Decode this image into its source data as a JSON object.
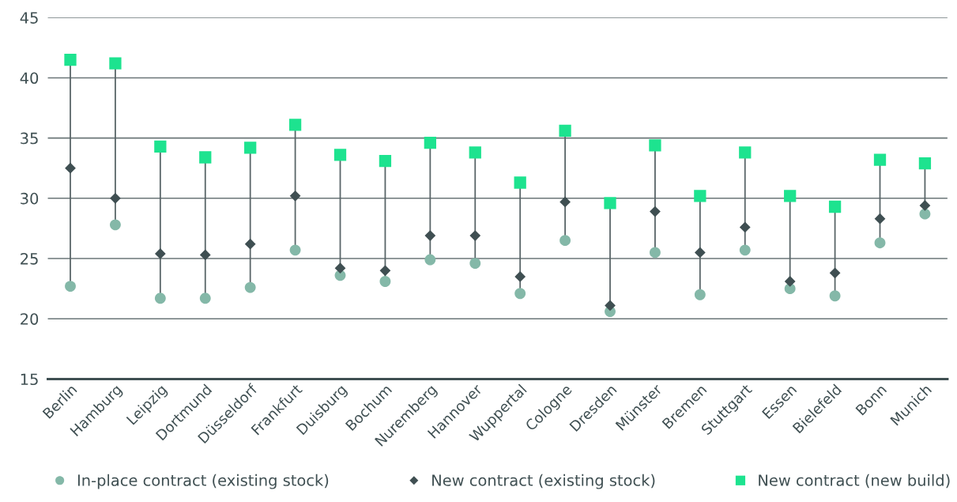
{
  "chart_data": {
    "type": "scatter",
    "categories": [
      "Berlin",
      "Hamburg",
      "Leipzig",
      "Dortmund",
      "Düsseldorf",
      "Frankfurt",
      "Duisburg",
      "Bochum",
      "Nuremberg",
      "Hannover",
      "Wuppertal",
      "Cologne",
      "Dresden",
      "Münster",
      "Bremen",
      "Stuttgart",
      "Essen",
      "Bielefeld",
      "Bonn",
      "Munich"
    ],
    "series": [
      {
        "name": "In-place contract (existing stock)",
        "color": "#84b8a8",
        "marker": "circle",
        "values": [
          22.7,
          27.8,
          21.7,
          21.7,
          22.6,
          25.7,
          23.6,
          23.1,
          24.9,
          24.6,
          22.1,
          26.5,
          20.6,
          25.5,
          22.0,
          25.7,
          22.5,
          21.9,
          26.3,
          28.7
        ]
      },
      {
        "name": "New contract (existing stock)",
        "color": "#3f4f52",
        "marker": "diamond",
        "values": [
          32.5,
          30.0,
          25.4,
          25.3,
          26.2,
          30.2,
          24.2,
          24.0,
          26.9,
          26.9,
          23.5,
          29.7,
          21.1,
          28.9,
          25.5,
          27.6,
          23.1,
          23.8,
          28.3,
          29.4
        ]
      },
      {
        "name": "New contract (new build)",
        "color": "#1de38f",
        "marker": "square",
        "values": [
          41.5,
          41.2,
          34.3,
          33.4,
          34.2,
          36.1,
          33.6,
          33.1,
          34.6,
          33.8,
          31.3,
          35.6,
          29.6,
          34.4,
          30.2,
          33.8,
          30.2,
          29.3,
          33.2,
          32.9
        ]
      }
    ],
    "ylim": [
      15,
      45
    ],
    "yticks": [
      15,
      20,
      25,
      30,
      35,
      40,
      45
    ],
    "grid": "y",
    "legend": "bottom"
  }
}
